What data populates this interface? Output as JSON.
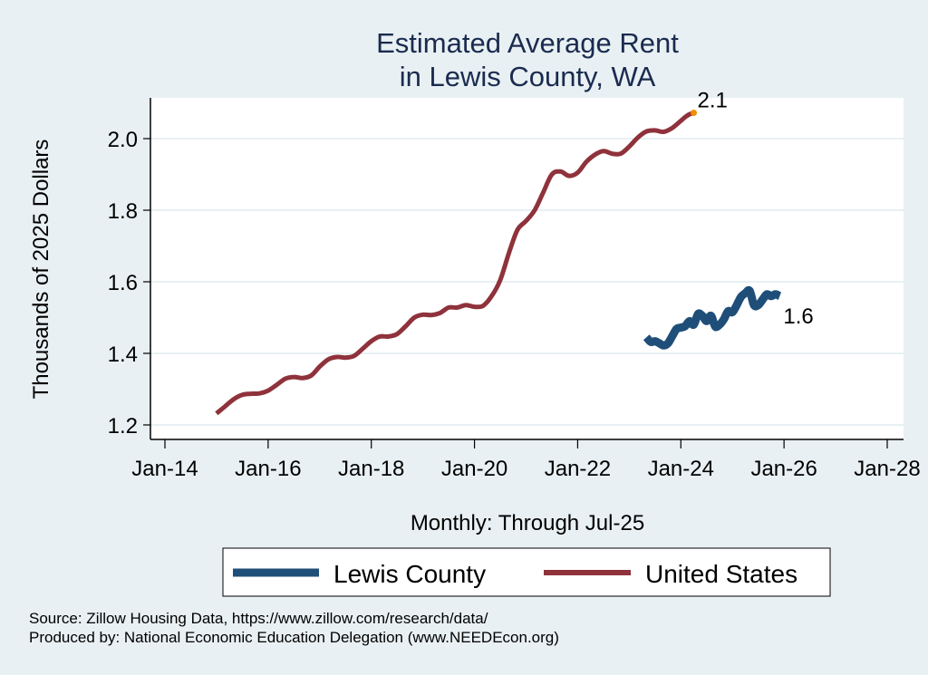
{
  "chart_data": {
    "type": "line",
    "title": [
      "Estimated Average Rent",
      "in Lewis County, WA"
    ],
    "xlabel": "Monthly: Through Jul-25",
    "ylabel": "Thousands of 2025 Dollars",
    "x_unit": "months since Jan-2014",
    "xlim": [
      0,
      168
    ],
    "ylim": [
      1.165,
      2.11
    ],
    "x_ticks": [
      {
        "value": 0,
        "label": "Jan-14"
      },
      {
        "value": 24,
        "label": "Jan-16"
      },
      {
        "value": 48,
        "label": "Jan-18"
      },
      {
        "value": 72,
        "label": "Jan-20"
      },
      {
        "value": 96,
        "label": "Jan-22"
      },
      {
        "value": 120,
        "label": "Jan-24"
      },
      {
        "value": 144,
        "label": "Jan-26"
      },
      {
        "value": 168,
        "label": "Jan-28"
      }
    ],
    "y_ticks": [
      {
        "value": 1.2,
        "label": "1.2"
      },
      {
        "value": 1.4,
        "label": "1.4"
      },
      {
        "value": 1.6,
        "label": "1.6"
      },
      {
        "value": 1.8,
        "label": "1.8"
      },
      {
        "value": 2.0,
        "label": "2.0"
      }
    ],
    "grid": true,
    "legend_position": "bottom",
    "series": [
      {
        "name": "Lewis County",
        "color": "#1f4e79",
        "end_label": "1.6",
        "points": [
          [
            112,
            1.445
          ],
          [
            113,
            1.432
          ],
          [
            114,
            1.434
          ],
          [
            115,
            1.428
          ],
          [
            116,
            1.422
          ],
          [
            117,
            1.428
          ],
          [
            118,
            1.448
          ],
          [
            119,
            1.468
          ],
          [
            120,
            1.472
          ],
          [
            121,
            1.476
          ],
          [
            122,
            1.49
          ],
          [
            123,
            1.48
          ],
          [
            124,
            1.51
          ],
          [
            125,
            1.505
          ],
          [
            126,
            1.49
          ],
          [
            127,
            1.505
          ],
          [
            128,
            1.475
          ],
          [
            129,
            1.48
          ],
          [
            130,
            1.495
          ],
          [
            131,
            1.518
          ],
          [
            132,
            1.515
          ],
          [
            133,
            1.535
          ],
          [
            134,
            1.558
          ],
          [
            135,
            1.568
          ],
          [
            136,
            1.575
          ],
          [
            137,
            1.535
          ],
          [
            138,
            1.535
          ],
          [
            139,
            1.55
          ],
          [
            140,
            1.565
          ],
          [
            141,
            1.56
          ],
          [
            142,
            1.565
          ],
          [
            143,
            1.56
          ]
        ]
      },
      {
        "name": "United States",
        "color": "#8f323b",
        "end_label": "2.1",
        "end_marker_color": "#f28c00",
        "points": [
          [
            12,
            1.232
          ],
          [
            14,
            1.252
          ],
          [
            16,
            1.272
          ],
          [
            18,
            1.284
          ],
          [
            20,
            1.287
          ],
          [
            22,
            1.288
          ],
          [
            24,
            1.296
          ],
          [
            26,
            1.312
          ],
          [
            28,
            1.329
          ],
          [
            30,
            1.334
          ],
          [
            32,
            1.331
          ],
          [
            34,
            1.338
          ],
          [
            36,
            1.363
          ],
          [
            38,
            1.383
          ],
          [
            40,
            1.39
          ],
          [
            42,
            1.388
          ],
          [
            44,
            1.393
          ],
          [
            46,
            1.413
          ],
          [
            48,
            1.434
          ],
          [
            50,
            1.447
          ],
          [
            52,
            1.447
          ],
          [
            54,
            1.454
          ],
          [
            56,
            1.476
          ],
          [
            58,
            1.5
          ],
          [
            60,
            1.508
          ],
          [
            62,
            1.507
          ],
          [
            64,
            1.513
          ],
          [
            66,
            1.528
          ],
          [
            68,
            1.528
          ],
          [
            70,
            1.535
          ],
          [
            72,
            1.53
          ],
          [
            74,
            1.533
          ],
          [
            76,
            1.56
          ],
          [
            78,
            1.605
          ],
          [
            80,
            1.68
          ],
          [
            82,
            1.745
          ],
          [
            84,
            1.77
          ],
          [
            86,
            1.8
          ],
          [
            88,
            1.85
          ],
          [
            90,
            1.9
          ],
          [
            92,
            1.908
          ],
          [
            94,
            1.896
          ],
          [
            96,
            1.905
          ],
          [
            98,
            1.935
          ],
          [
            100,
            1.955
          ],
          [
            102,
            1.965
          ],
          [
            104,
            1.958
          ],
          [
            106,
            1.958
          ],
          [
            108,
            1.978
          ],
          [
            110,
            2.003
          ],
          [
            112,
            2.02
          ],
          [
            114,
            2.023
          ],
          [
            116,
            2.019
          ],
          [
            118,
            2.03
          ],
          [
            120,
            2.05
          ],
          [
            121,
            2.06
          ],
          [
            122,
            2.068
          ],
          [
            123,
            2.072
          ]
        ]
      }
    ],
    "legend": [
      {
        "label": "Lewis County",
        "color": "#1f4e79"
      },
      {
        "label": "United States",
        "color": "#8f323b"
      }
    ]
  },
  "notes": {
    "source": "Source: Zillow Housing Data, https://www.zillow.com/research/data/",
    "producer": "Produced by: National Economic Education Delegation (www.NEEDEcon.org)"
  }
}
